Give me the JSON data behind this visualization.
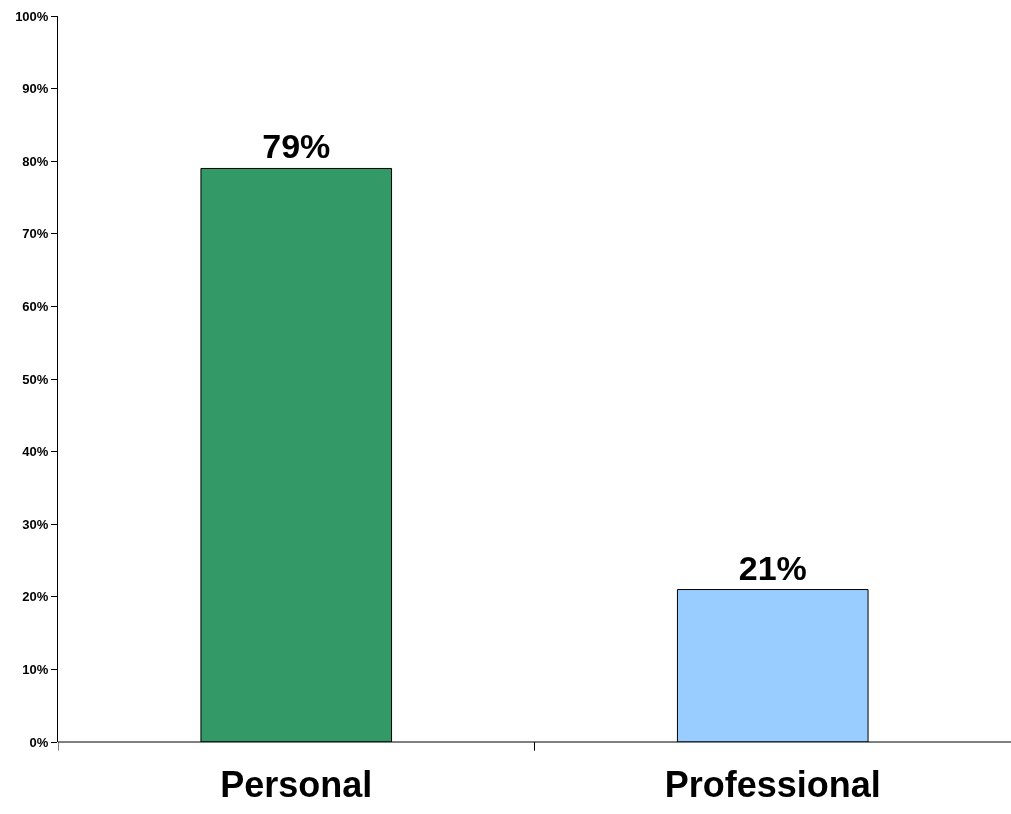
{
  "chart_data": {
    "type": "bar",
    "categories": [
      "Personal",
      "Professional"
    ],
    "values": [
      79,
      21
    ],
    "colors": [
      "#339966",
      "#99ccff"
    ],
    "value_labels": [
      "79%",
      "21%"
    ],
    "ylim": [
      0,
      100
    ],
    "yticks": [
      {
        "value": 0,
        "label": "0%"
      },
      {
        "value": 10,
        "label": "10%"
      },
      {
        "value": 20,
        "label": "20%"
      },
      {
        "value": 30,
        "label": "30%"
      },
      {
        "value": 40,
        "label": "40%"
      },
      {
        "value": 50,
        "label": "50%"
      },
      {
        "value": 60,
        "label": "60%"
      },
      {
        "value": 70,
        "label": "70%"
      },
      {
        "value": 80,
        "label": "80%"
      },
      {
        "value": 90,
        "label": "90%"
      },
      {
        "value": 100,
        "label": "100%"
      }
    ],
    "grid": false
  }
}
